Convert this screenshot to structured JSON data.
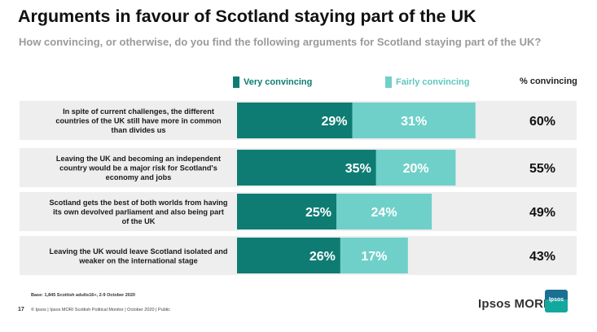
{
  "header": {
    "title": "Arguments in favour of Scotland staying part of the UK",
    "subtitle": "How convincing, or otherwise, do you find the following arguments for Scotland staying part of the UK?"
  },
  "legend": {
    "very_label": "Very convincing",
    "fairly_label": "Fairly convincing",
    "pct_label": "% convincing"
  },
  "colors": {
    "very": "#0e7c73",
    "fairly": "#6fd0c9",
    "row_band": "#eeeeee",
    "very_text": "#0e7c73",
    "fairly_text": "#5ec8c0"
  },
  "chart_data": {
    "type": "bar",
    "orientation": "horizontal",
    "stacked": true,
    "categories": [
      [
        "In spite of current challenges, the different",
        "countries of the UK still have more in common",
        "than divides us"
      ],
      [
        "Leaving the UK and becoming an independent",
        "country would be a major risk for Scotland's",
        "economy and jobs"
      ],
      [
        "Scotland gets the best of both worlds from having",
        "its own devolved parliament and also being part",
        "of the UK"
      ],
      [
        "Leaving the UK would leave Scotland isolated and",
        "weaker on the international stage"
      ]
    ],
    "series": [
      {
        "name": "Very convincing",
        "values": [
          29,
          35,
          25,
          26
        ]
      },
      {
        "name": "Fairly convincing",
        "values": [
          31,
          20,
          24,
          17
        ]
      }
    ],
    "totals": [
      60,
      55,
      49,
      43
    ],
    "value_suffix": "%",
    "legend_position": "top"
  },
  "footer": {
    "base": "Base: 1,845  Scottish  adults16+, 2-9 October 2020",
    "page_number": "17",
    "copyright": "© Ipsos | Ipsos MORI Scottish Political Monitor | October 2020 | Public",
    "brand": "Ipsos MORI",
    "logo_text": "Ipsos"
  }
}
